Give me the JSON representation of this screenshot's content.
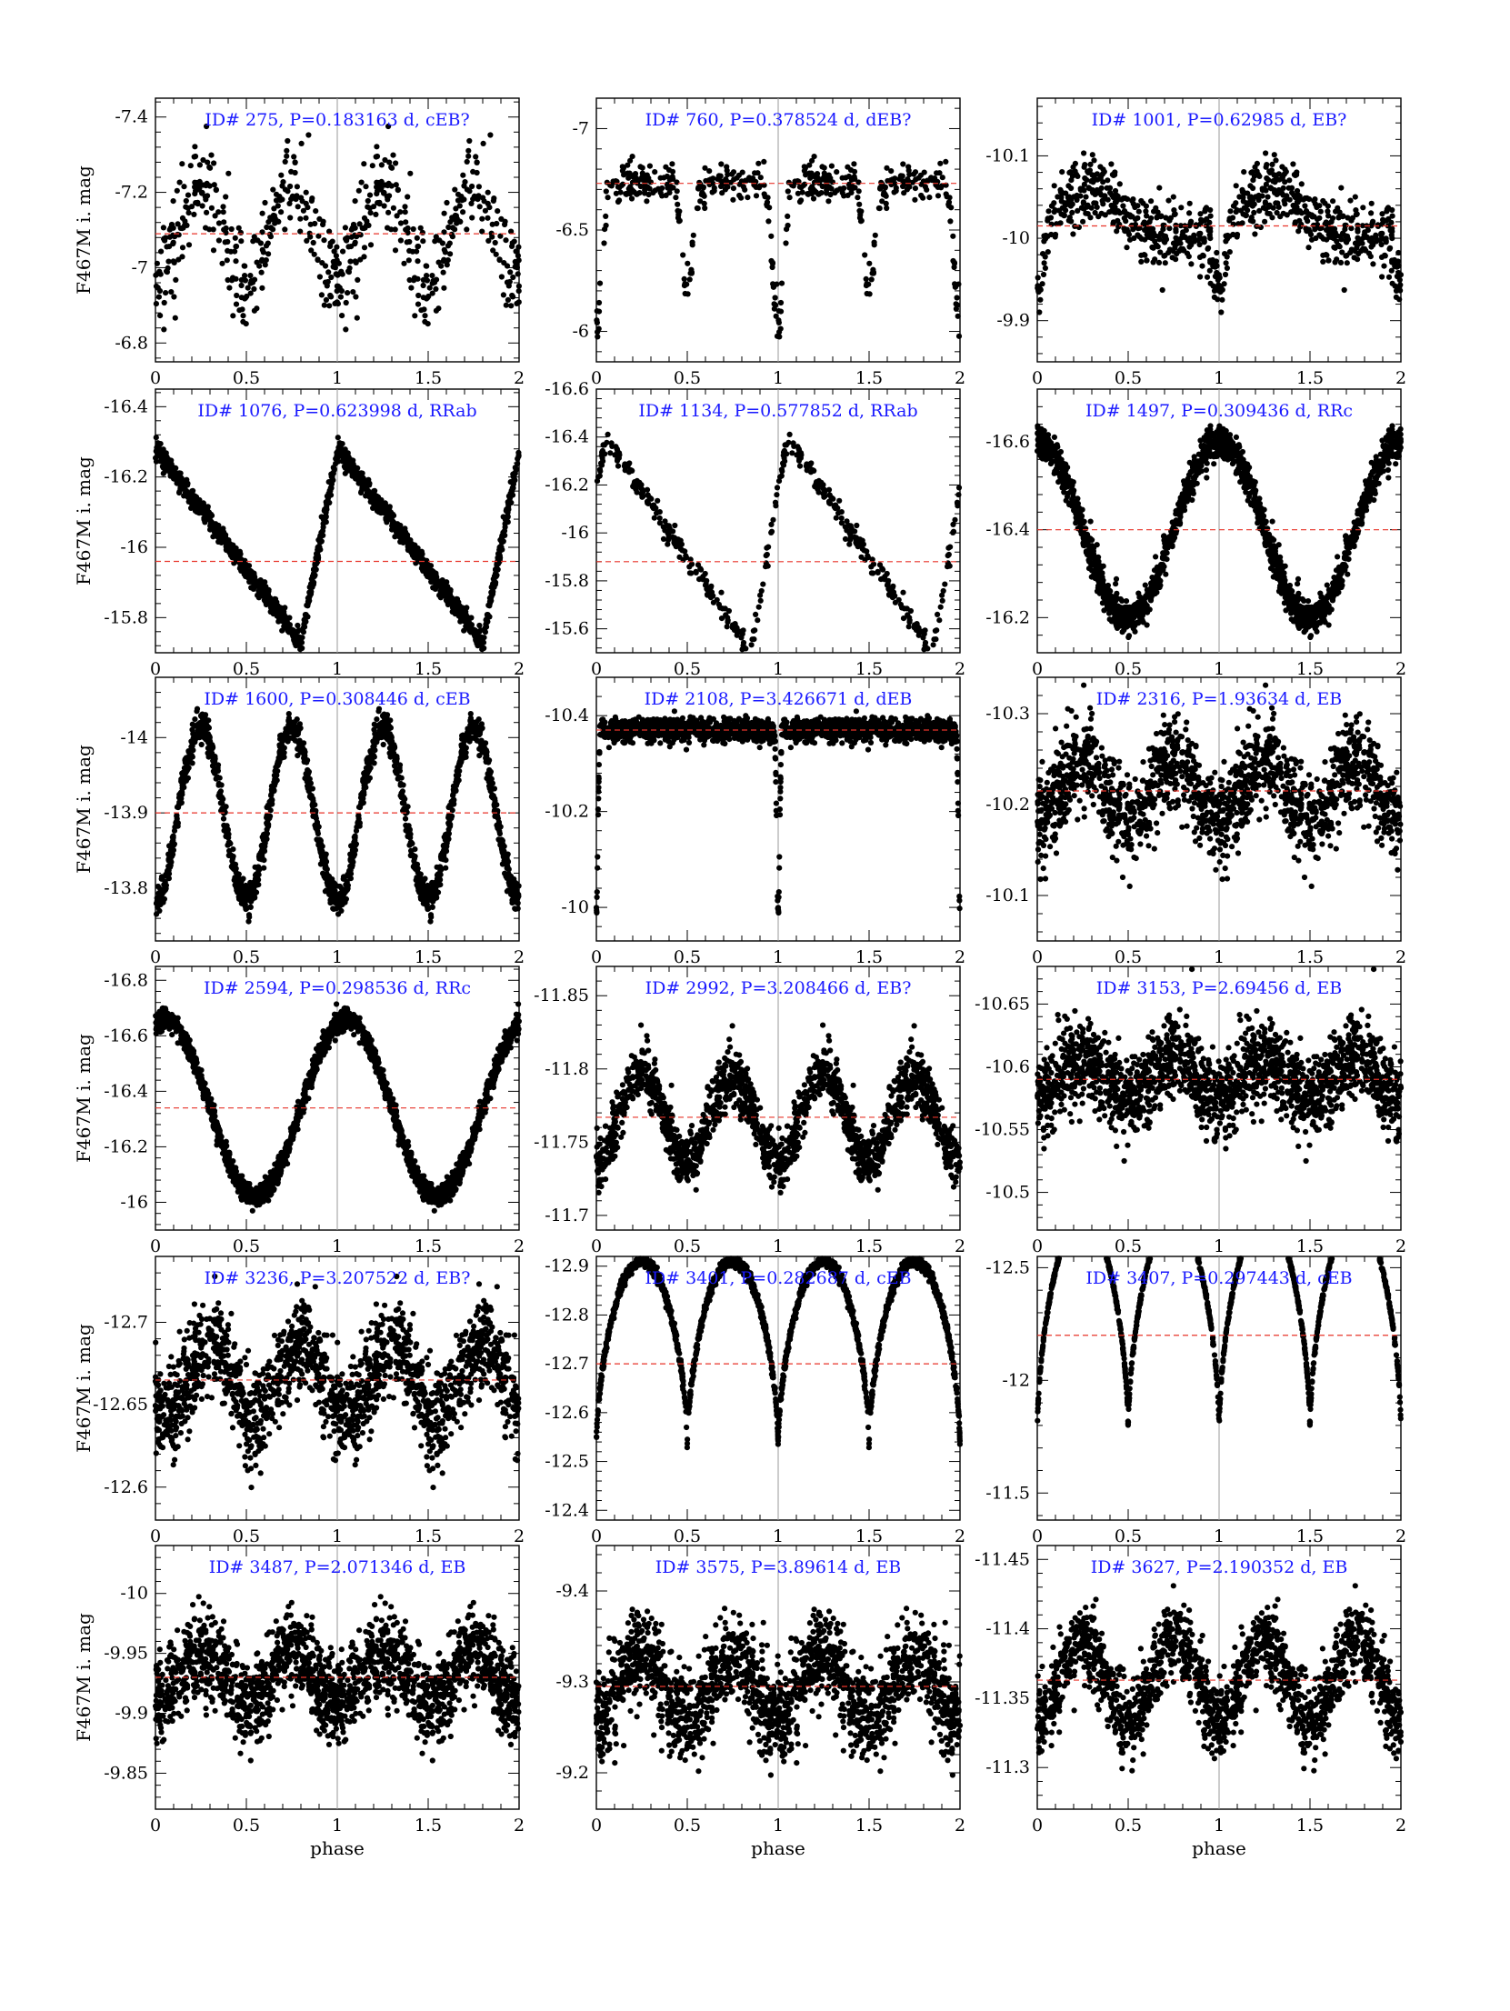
{
  "figure": {
    "ylabel": "F467M i. mag",
    "xlabel": "phase",
    "colors": {
      "points": "#000000",
      "mean_line": "#e8342a",
      "title": "#1a1aff",
      "phase_marker": "#9a9a9a"
    }
  },
  "chart_data": [
    {
      "type": "scatter",
      "title": "ID# 275, P=0.183163 d, cEB?",
      "xlim": [
        0,
        2
      ],
      "ylim": [
        -6.75,
        -7.45
      ],
      "yticks": [
        -7.4,
        -7.2,
        -7,
        -6.8
      ],
      "xticks": [
        0,
        0.5,
        1,
        1.5,
        2
      ],
      "mean": -7.09,
      "phase_marker": 1,
      "shape": "sine",
      "amplitude": 0.13,
      "period_fraction": 0.5,
      "min_phase": 0.0,
      "noise": 0.06,
      "eclipse_depth": 0,
      "eclipse_width": 0,
      "n_points": 300
    },
    {
      "type": "scatter",
      "title": "ID# 760, P=0.378524 d, dEB?",
      "xlim": [
        0,
        2
      ],
      "ylim": [
        -5.85,
        -7.15
      ],
      "yticks": [
        -7,
        -6.5,
        -6
      ],
      "xticks": [
        0,
        0.5,
        1,
        1.5,
        2
      ],
      "mean": -6.73,
      "phase_marker": 1,
      "shape": "eclipse",
      "amplitude": 0,
      "period_fraction": 1,
      "min_phase": 0.0,
      "noise": 0.05,
      "eclipse_depth": 0.7,
      "eclipse_width": 0.03,
      "n_points": 240
    },
    {
      "type": "scatter",
      "title": "ID# 1001, P=0.62985 d, EB?",
      "xlim": [
        0,
        2
      ],
      "ylim": [
        -9.85,
        -10.17
      ],
      "yticks": [
        -10.1,
        -10,
        -9.9
      ],
      "xticks": [
        0,
        0.5,
        1,
        1.5,
        2
      ],
      "mean": -10.015,
      "phase_marker": 1,
      "shape": "hump",
      "amplitude": 0.05,
      "period_fraction": 1,
      "min_phase": 0.0,
      "noise": 0.02,
      "eclipse_depth": 0.08,
      "eclipse_width": 0.03,
      "n_points": 420
    },
    {
      "type": "scatter",
      "title": "ID# 1076, P=0.623998 d, RRab",
      "xlim": [
        0,
        2
      ],
      "ylim": [
        -15.7,
        -16.45
      ],
      "yticks": [
        -16.4,
        -16.2,
        -16,
        -15.8
      ],
      "xticks": [
        0,
        0.5,
        1,
        1.5,
        2
      ],
      "mean": -15.96,
      "phase_marker": 1,
      "shape": "rrab",
      "amplitude": 0.55,
      "period_fraction": 1,
      "min_phase": 0.8,
      "noise": 0.015,
      "eclipse_depth": 0,
      "eclipse_width": 0,
      "n_points": 700
    },
    {
      "type": "scatter",
      "title": "ID# 1134, P=0.577852 d, RRab",
      "xlim": [
        0,
        2
      ],
      "ylim": [
        -15.5,
        -16.6
      ],
      "yticks": [
        -16.6,
        -16.4,
        -16.2,
        -16,
        -15.8,
        -15.6
      ],
      "xticks": [
        0,
        0.5,
        1,
        1.5,
        2
      ],
      "mean": -15.88,
      "phase_marker": 1,
      "shape": "rrab",
      "amplitude": 0.9,
      "period_fraction": 1,
      "min_phase": 0.85,
      "noise": 0.02,
      "eclipse_depth": 0,
      "eclipse_width": 0,
      "n_points": 220
    },
    {
      "type": "scatter",
      "title": "ID# 1497, P=0.309436 d, RRc",
      "xlim": [
        0,
        2
      ],
      "ylim": [
        -16.12,
        -16.72
      ],
      "yticks": [
        -16.6,
        -16.4,
        -16.2
      ],
      "xticks": [
        0,
        0.5,
        1,
        1.5,
        2
      ],
      "mean": -16.4,
      "phase_marker": 1,
      "shape": "sine",
      "amplitude": 0.2,
      "period_fraction": 1,
      "min_phase": 0.5,
      "noise": 0.02,
      "eclipse_depth": 0,
      "eclipse_width": 0,
      "n_points": 900
    },
    {
      "type": "scatter",
      "title": "ID# 1600, P=0.308446 d, cEB",
      "xlim": [
        0,
        2
      ],
      "ylim": [
        -13.73,
        -14.08
      ],
      "yticks": [
        -14,
        -13.9,
        -13.8
      ],
      "xticks": [
        0,
        0.5,
        1,
        1.5,
        2
      ],
      "mean": -13.9,
      "phase_marker": 1,
      "shape": "sine",
      "amplitude": 0.115,
      "period_fraction": 0.5,
      "min_phase": 0.0,
      "noise": 0.01,
      "eclipse_depth": 0,
      "eclipse_width": 0,
      "n_points": 800
    },
    {
      "type": "scatter",
      "title": "ID# 2108, P=3.426671 d, dEB",
      "xlim": [
        0,
        2
      ],
      "ylim": [
        -9.93,
        -10.48
      ],
      "yticks": [
        -10.4,
        -10.2,
        -10
      ],
      "xticks": [
        0,
        0.5,
        1,
        1.5,
        2
      ],
      "mean": -10.37,
      "phase_marker": 1,
      "shape": "eclipse",
      "amplitude": 0,
      "period_fraction": 1,
      "min_phase": 0.0,
      "noise": 0.012,
      "eclipse_depth": 0.38,
      "eclipse_width": 0.008,
      "n_points": 900
    },
    {
      "type": "scatter",
      "title": "ID# 2316, P=1.93634 d, EB",
      "xlim": [
        0,
        2
      ],
      "ylim": [
        -10.05,
        -10.34
      ],
      "yticks": [
        -10.3,
        -10.2,
        -10.1
      ],
      "xticks": [
        0,
        0.5,
        1,
        1.5,
        2
      ],
      "mean": -10.215,
      "phase_marker": 1,
      "shape": "sine",
      "amplitude": 0.035,
      "period_fraction": 0.5,
      "min_phase": 0.0,
      "noise": 0.025,
      "eclipse_depth": 0,
      "eclipse_width": 0,
      "n_points": 800
    },
    {
      "type": "scatter",
      "title": "ID# 2594, P=0.298536 d, RRc",
      "xlim": [
        0,
        2
      ],
      "ylim": [
        -15.9,
        -16.85
      ],
      "yticks": [
        -16.8,
        -16.6,
        -16.4,
        -16.2,
        -16
      ],
      "xticks": [
        0,
        0.5,
        1,
        1.5,
        2
      ],
      "mean": -16.34,
      "phase_marker": 1,
      "shape": "sine",
      "amplitude": 0.32,
      "period_fraction": 1,
      "min_phase": 0.55,
      "noise": 0.02,
      "eclipse_depth": 0,
      "eclipse_width": 0,
      "n_points": 1000
    },
    {
      "type": "scatter",
      "title": "ID# 2992, P=3.208466 d, EB?",
      "xlim": [
        0,
        2
      ],
      "ylim": [
        -11.69,
        -11.87
      ],
      "yticks": [
        -11.85,
        -11.8,
        -11.75,
        -11.7
      ],
      "xticks": [
        0,
        0.5,
        1,
        1.5,
        2
      ],
      "mean": -11.767,
      "phase_marker": 1,
      "shape": "sine",
      "amplitude": 0.03,
      "period_fraction": 0.5,
      "min_phase": 0.0,
      "noise": 0.01,
      "eclipse_depth": 0,
      "eclipse_width": 0,
      "n_points": 800
    },
    {
      "type": "scatter",
      "title": "ID# 3153, P=2.69456 d, EB",
      "xlim": [
        0,
        2
      ],
      "ylim": [
        -10.47,
        -10.68
      ],
      "yticks": [
        -10.65,
        -10.6,
        -10.55,
        -10.5
      ],
      "xticks": [
        0,
        0.5,
        1,
        1.5,
        2
      ],
      "mean": -10.59,
      "phase_marker": 1,
      "shape": "sine",
      "amplitude": 0.015,
      "period_fraction": 0.5,
      "min_phase": 0.0,
      "noise": 0.017,
      "eclipse_depth": 0,
      "eclipse_width": 0,
      "n_points": 900
    },
    {
      "type": "scatter",
      "title": "ID# 3236, P=3.207522 d, EB?",
      "xlim": [
        0,
        2
      ],
      "ylim": [
        -12.58,
        -12.74
      ],
      "yticks": [
        -12.7,
        -12.65,
        -12.6
      ],
      "xticks": [
        0,
        0.5,
        1,
        1.5,
        2
      ],
      "mean": -12.665,
      "phase_marker": 1,
      "shape": "sine",
      "amplitude": 0.022,
      "period_fraction": 0.5,
      "min_phase": 0.55,
      "noise": 0.015,
      "eclipse_depth": 0,
      "eclipse_width": 0,
      "n_points": 800
    },
    {
      "type": "scatter",
      "title": "ID# 3401, P=0.282687 d, cEB",
      "xlim": [
        0,
        2
      ],
      "ylim": [
        -12.38,
        -12.92
      ],
      "yticks": [
        -12.9,
        -12.8,
        -12.7,
        -12.6,
        -12.5,
        -12.4
      ],
      "xticks": [
        0,
        0.5,
        1,
        1.5,
        2
      ],
      "mean": -12.7,
      "phase_marker": 1,
      "shape": "cusp",
      "amplitude": 0.35,
      "period_fraction": 0.5,
      "min_phase": 0.0,
      "noise": 0.006,
      "eclipse_depth": 0,
      "eclipse_width": 0,
      "n_points": 1000
    },
    {
      "type": "scatter",
      "title": "ID# 3407, P=0.297443 d, cEB",
      "xlim": [
        0,
        2
      ],
      "ylim": [
        -11.38,
        -12.55
      ],
      "yticks": [
        -12.5,
        -12,
        -11.5
      ],
      "xticks": [
        0,
        0.5,
        1,
        1.5,
        2
      ],
      "mean": -12.2,
      "phase_marker": 1,
      "shape": "cusp",
      "amplitude": 0.88,
      "period_fraction": 0.5,
      "min_phase": 0.0,
      "noise": 0.006,
      "eclipse_depth": 0,
      "eclipse_width": 0,
      "n_points": 1000
    },
    {
      "type": "scatter",
      "title": "ID# 3487, P=2.071346 d, EB",
      "xlim": [
        0,
        2
      ],
      "ylim": [
        -9.82,
        -10.04
      ],
      "yticks": [
        -10,
        -9.95,
        -9.9,
        -9.85
      ],
      "xticks": [
        0,
        0.5,
        1,
        1.5,
        2
      ],
      "mean": -9.93,
      "phase_marker": 1,
      "shape": "sine",
      "amplitude": 0.02,
      "period_fraction": 0.5,
      "min_phase": 0.0,
      "noise": 0.018,
      "eclipse_depth": 0,
      "eclipse_width": 0,
      "n_points": 900
    },
    {
      "type": "scatter",
      "title": "ID# 3575, P=3.89614 d, EB",
      "xlim": [
        0,
        2
      ],
      "ylim": [
        -9.16,
        -9.45
      ],
      "yticks": [
        -9.4,
        -9.3,
        -9.2
      ],
      "xticks": [
        0,
        0.5,
        1,
        1.5,
        2
      ],
      "mean": -9.295,
      "phase_marker": 1,
      "shape": "sine",
      "amplitude": 0.035,
      "period_fraction": 0.5,
      "min_phase": 0.0,
      "noise": 0.025,
      "eclipse_depth": 0,
      "eclipse_width": 0,
      "n_points": 900
    },
    {
      "type": "scatter",
      "title": "ID# 3627, P=2.190352 d, EB",
      "xlim": [
        0,
        2
      ],
      "ylim": [
        -11.27,
        -11.46
      ],
      "yticks": [
        -11.45,
        -11.4,
        -11.35,
        -11.3
      ],
      "xticks": [
        0,
        0.5,
        1,
        1.5,
        2
      ],
      "mean": -11.363,
      "phase_marker": 1,
      "shape": "sine",
      "amplitude": 0.03,
      "period_fraction": 0.5,
      "min_phase": 0.0,
      "noise": 0.014,
      "eclipse_depth": 0,
      "eclipse_width": 0,
      "n_points": 800
    }
  ]
}
